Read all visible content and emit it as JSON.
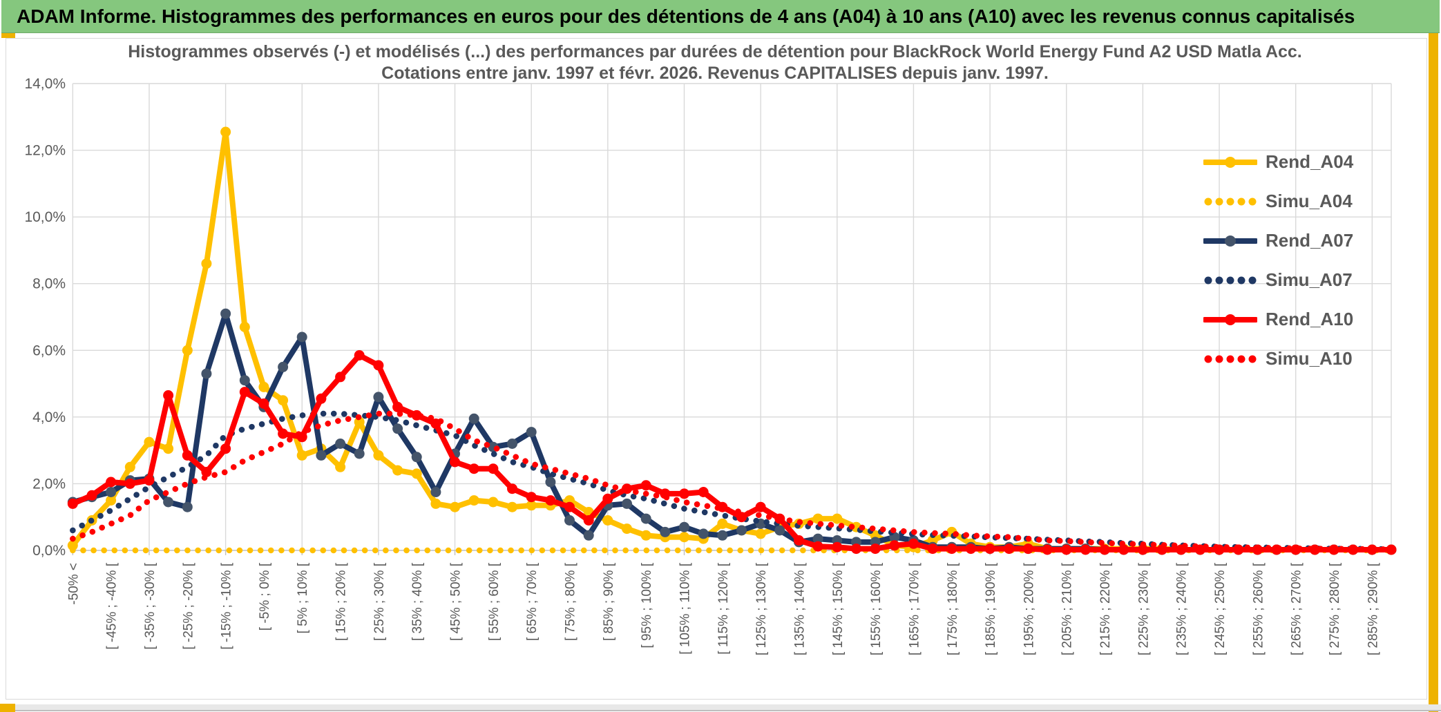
{
  "banner": {
    "title": "ADAM Informe. Histogrammes des performances en euros pour des détentions de 4 ans (A04) à 10 ans (A10) avec les revenus connus capitalisés"
  },
  "chart_data": {
    "type": "line",
    "title": "Histogrammes observés (-) et modélisés (...) des performances par durées de détention pour BlackRock World Energy Fund A2 USD Matla Acc.",
    "subtitle": "Cotations entre janv. 1997 et févr. 2026. Revenus CAPITALISES depuis janv. 1997.",
    "ylabel": "",
    "xlabel": "",
    "ylim": [
      0,
      14
    ],
    "y_tick_step": 2,
    "y_tick_labels": [
      "0,0%",
      "2,0%",
      "4,0%",
      "6,0%",
      "8,0%",
      "10,0%",
      "12,0%",
      "14,0%"
    ],
    "grid": true,
    "legend_position": "right",
    "n_points": 70,
    "label_every": 2,
    "categories": [
      "-50% <",
      "[ -45% ; -40% [",
      "[ -35% ; -30% [",
      "[ -25% ; -20% [",
      "[ -15% ; -10% [",
      "[ -5% ; 0% [",
      "[ 5% ; 10% [",
      "[ 15% ; 20% [",
      "[ 25% ; 30% [",
      "[ 35% ; 40% [",
      "[ 45% ; 50% [",
      "[ 55% ; 60% [",
      "[ 65% ; 70% [",
      "[ 75% ; 80% [",
      "[ 85% ; 90% [",
      "[ 95% ; 100% [",
      "[ 105% ; 110% [",
      "[ 115% ; 120% [",
      "[ 125% ; 130% [",
      "[ 135% ; 140% [",
      "[ 145% ; 150% [",
      "[ 155% ; 160% [",
      "[ 165% ; 170% [",
      "[ 175% ; 180% [",
      "[ 185% ; 190% [",
      "[ 195% ; 200% [",
      "[ 205% ; 210% [",
      "[ 215% ; 220% [",
      "[ 225% ; 230% [",
      "[ 235% ; 240% [",
      "[ 245% ; 250% [",
      "[ 255% ; 260% [",
      "[ 265% ; 270% [",
      "[ 275% ; 280% [",
      "[ 285% ; 290% ["
    ],
    "series": [
      {
        "name": "Rend_A04",
        "style": "solid",
        "color": "#FFC000",
        "marker_color": "#FFC000",
        "values": [
          0.15,
          0.9,
          1.5,
          2.5,
          3.25,
          3.05,
          6.0,
          8.6,
          12.55,
          6.7,
          4.9,
          4.5,
          2.85,
          3.05,
          2.5,
          3.85,
          2.85,
          2.4,
          2.3,
          1.4,
          1.3,
          1.5,
          1.45,
          1.3,
          1.35,
          1.35,
          1.5,
          1.15,
          0.9,
          0.65,
          0.45,
          0.4,
          0.4,
          0.35,
          0.8,
          0.6,
          0.5,
          0.7,
          0.8,
          0.95,
          0.95,
          0.7,
          0.45,
          0.15,
          0.1,
          0.3,
          0.55,
          0.2,
          0.1,
          0.1,
          0.2,
          0.05,
          0.05,
          0.05,
          0.05,
          0.05,
          0.05,
          0.05,
          0.02,
          0.02,
          0.02,
          0.02,
          0.02,
          0.02,
          0.02,
          0.02,
          0.02,
          0.02,
          0.02,
          0.02
        ]
      },
      {
        "name": "Simu_A04",
        "style": "dotted",
        "color": "#FFC000",
        "marker_color": "#FFC000",
        "values": [
          0,
          0,
          0,
          0,
          0,
          0,
          0,
          0,
          0,
          0,
          0,
          0,
          0,
          0,
          0,
          0,
          0,
          0,
          0,
          0,
          0,
          0,
          0,
          0,
          0,
          0,
          0,
          0,
          0,
          0,
          0,
          0,
          0,
          0,
          0,
          0,
          0,
          0,
          0,
          0,
          0,
          0,
          0,
          0,
          0,
          0,
          0,
          0,
          0,
          0,
          0,
          0,
          0,
          0,
          0,
          0,
          0,
          0,
          0,
          0,
          0,
          0,
          0,
          0,
          0,
          0,
          0,
          0,
          0,
          0
        ]
      },
      {
        "name": "Rend_A07",
        "style": "solid",
        "color": "#1F3864",
        "marker_color": "#44546A",
        "values": [
          1.45,
          1.6,
          1.75,
          2.1,
          2.15,
          1.45,
          1.3,
          5.3,
          7.1,
          5.1,
          4.3,
          5.5,
          6.4,
          2.85,
          3.2,
          2.9,
          4.6,
          3.65,
          2.8,
          1.75,
          2.9,
          3.95,
          3.1,
          3.2,
          3.55,
          2.05,
          0.9,
          0.45,
          1.35,
          1.4,
          0.95,
          0.55,
          0.7,
          0.5,
          0.45,
          0.6,
          0.8,
          0.6,
          0.25,
          0.35,
          0.3,
          0.25,
          0.25,
          0.4,
          0.3,
          0.1,
          0.1,
          0.1,
          0.05,
          0.1,
          0.05,
          0.05,
          0.05,
          0.05,
          0.02,
          0.02,
          0.02,
          0.02,
          0.02,
          0.02,
          0.02,
          0.02,
          0.02,
          0.02,
          0.02,
          0.02,
          0.02,
          0.02,
          0.02,
          0.02
        ]
      },
      {
        "name": "Simu_A07",
        "style": "dotted",
        "color": "#1F3864",
        "marker_color": "#1F3864",
        "values": [
          0.6,
          0.9,
          1.2,
          1.55,
          1.9,
          2.2,
          2.5,
          2.85,
          3.45,
          3.65,
          3.8,
          3.95,
          4.05,
          4.1,
          4.1,
          4.05,
          4.0,
          3.9,
          3.75,
          3.6,
          3.45,
          3.15,
          2.9,
          2.65,
          2.5,
          2.3,
          2.15,
          2.0,
          1.8,
          1.65,
          1.55,
          1.4,
          1.25,
          1.15,
          1.05,
          0.95,
          0.87,
          0.8,
          0.74,
          0.7,
          0.66,
          0.62,
          0.57,
          0.53,
          0.49,
          0.46,
          0.44,
          0.42,
          0.39,
          0.37,
          0.35,
          0.32,
          0.3,
          0.27,
          0.25,
          0.22,
          0.2,
          0.17,
          0.15,
          0.13,
          0.11,
          0.1,
          0.09,
          0.08,
          0.07,
          0.06,
          0.05,
          0.05,
          0.04,
          0.04
        ]
      },
      {
        "name": "Rend_A10",
        "style": "solid",
        "color": "#FF0000",
        "marker_color": "#FF0000",
        "values": [
          1.4,
          1.65,
          2.05,
          2.0,
          2.1,
          4.65,
          2.85,
          2.35,
          3.05,
          4.75,
          4.4,
          3.5,
          3.4,
          4.55,
          5.2,
          5.85,
          5.55,
          4.3,
          4.05,
          3.8,
          2.65,
          2.45,
          2.45,
          1.85,
          1.6,
          1.5,
          1.3,
          0.9,
          1.55,
          1.85,
          1.95,
          1.7,
          1.7,
          1.75,
          1.3,
          1.0,
          1.3,
          0.95,
          0.3,
          0.12,
          0.1,
          0.05,
          0.05,
          0.15,
          0.2,
          0.05,
          0.05,
          0.05,
          0.05,
          0.05,
          0.05,
          0.02,
          0.02,
          0.02,
          0.02,
          0.02,
          0.02,
          0.02,
          0.02,
          0.02,
          0.02,
          0.02,
          0.02,
          0.02,
          0.02,
          0.02,
          0.02,
          0.02,
          0.02,
          0.02
        ]
      },
      {
        "name": "Simu_A10",
        "style": "dotted",
        "color": "#FF0000",
        "marker_color": "#FF0000",
        "values": [
          0.35,
          0.55,
          0.8,
          1.05,
          1.5,
          1.75,
          2.0,
          2.2,
          2.35,
          2.7,
          2.95,
          3.2,
          3.55,
          3.75,
          3.9,
          4.0,
          4.1,
          4.1,
          4.05,
          3.95,
          3.65,
          3.3,
          3.1,
          2.85,
          2.6,
          2.45,
          2.3,
          2.15,
          1.95,
          1.8,
          1.7,
          1.6,
          1.45,
          1.35,
          1.25,
          1.15,
          1.05,
          0.95,
          0.85,
          0.8,
          0.75,
          0.7,
          0.65,
          0.6,
          0.55,
          0.52,
          0.5,
          0.45,
          0.42,
          0.4,
          0.35,
          0.3,
          0.28,
          0.25,
          0.22,
          0.2,
          0.18,
          0.16,
          0.14,
          0.12,
          0.1,
          0.09,
          0.08,
          0.07,
          0.06,
          0.05,
          0.05,
          0.04,
          0.04,
          0.03
        ]
      }
    ]
  },
  "colors": {
    "banner_green": "#85C77E",
    "gold_accent": "#EEB200",
    "gridline": "#D9D9D9",
    "axis_line": "#BFBFBF",
    "text_gray": "#595959"
  }
}
